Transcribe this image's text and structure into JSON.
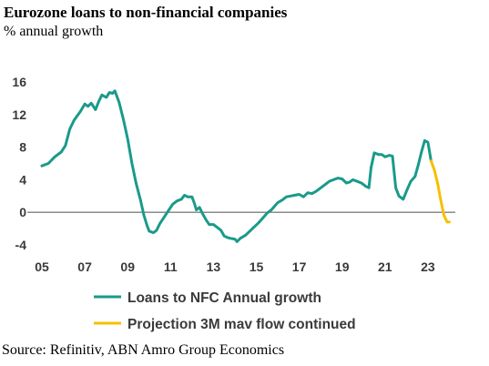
{
  "header": {
    "title": "Eurozone loans to non-financial companies",
    "subtitle": "% annual growth"
  },
  "footer": {
    "source": "Source: Refinitiv, ABN Amro Group Economics"
  },
  "colors": {
    "actual": "#1a9a8a",
    "projection": "#f5c000",
    "axis": "#7f7f7f",
    "text": "#3a3a3a"
  },
  "chart_data": {
    "type": "line",
    "title": "Eurozone loans to non-financial companies",
    "subtitle": "% annual growth",
    "xlabel": "",
    "ylabel": "",
    "xlim": [
      2005,
      2024
    ],
    "ylim": [
      -4,
      16
    ],
    "x_ticks": [
      {
        "value": 2005,
        "label": "05"
      },
      {
        "value": 2007,
        "label": "07"
      },
      {
        "value": 2009,
        "label": "09"
      },
      {
        "value": 2011,
        "label": "11"
      },
      {
        "value": 2013,
        "label": "13"
      },
      {
        "value": 2015,
        "label": "15"
      },
      {
        "value": 2017,
        "label": "17"
      },
      {
        "value": 2019,
        "label": "19"
      },
      {
        "value": 2021,
        "label": "21"
      },
      {
        "value": 2023,
        "label": "23"
      }
    ],
    "y_ticks": [
      {
        "value": 16,
        "label": "16"
      },
      {
        "value": 12,
        "label": "12"
      },
      {
        "value": 8,
        "label": "8"
      },
      {
        "value": 4,
        "label": "4"
      },
      {
        "value": 0,
        "label": "0"
      },
      {
        "value": -4,
        "label": "-4"
      }
    ],
    "grid": false,
    "legend_position": "bottom",
    "series": [
      {
        "name": "Loans to NFC Annual growth",
        "color": "#1a9a8a",
        "points": [
          [
            2005.0,
            5.7
          ],
          [
            2005.3,
            6.0
          ],
          [
            2005.6,
            6.8
          ],
          [
            2005.9,
            7.4
          ],
          [
            2006.1,
            8.2
          ],
          [
            2006.3,
            10.2
          ],
          [
            2006.5,
            11.3
          ],
          [
            2006.8,
            12.4
          ],
          [
            2007.0,
            13.3
          ],
          [
            2007.15,
            13.0
          ],
          [
            2007.3,
            13.4
          ],
          [
            2007.5,
            12.6
          ],
          [
            2007.65,
            13.6
          ],
          [
            2007.8,
            14.4
          ],
          [
            2008.0,
            14.1
          ],
          [
            2008.15,
            14.7
          ],
          [
            2008.3,
            14.6
          ],
          [
            2008.4,
            14.9
          ],
          [
            2008.6,
            13.5
          ],
          [
            2008.8,
            11.4
          ],
          [
            2009.0,
            9.0
          ],
          [
            2009.2,
            6.0
          ],
          [
            2009.4,
            3.5
          ],
          [
            2009.6,
            1.5
          ],
          [
            2009.75,
            -0.3
          ],
          [
            2009.9,
            -1.6
          ],
          [
            2010.0,
            -2.3
          ],
          [
            2010.2,
            -2.5
          ],
          [
            2010.35,
            -2.2
          ],
          [
            2010.5,
            -1.4
          ],
          [
            2010.7,
            -0.6
          ],
          [
            2010.9,
            0.2
          ],
          [
            2011.1,
            1.0
          ],
          [
            2011.3,
            1.4
          ],
          [
            2011.5,
            1.6
          ],
          [
            2011.65,
            2.1
          ],
          [
            2011.8,
            1.9
          ],
          [
            2012.0,
            1.9
          ],
          [
            2012.1,
            1.2
          ],
          [
            2012.2,
            0.3
          ],
          [
            2012.35,
            0.6
          ],
          [
            2012.5,
            -0.2
          ],
          [
            2012.65,
            -0.9
          ],
          [
            2012.8,
            -1.5
          ],
          [
            2013.0,
            -1.5
          ],
          [
            2013.2,
            -1.9
          ],
          [
            2013.35,
            -2.2
          ],
          [
            2013.5,
            -2.9
          ],
          [
            2013.65,
            -3.1
          ],
          [
            2013.8,
            -3.2
          ],
          [
            2014.0,
            -3.3
          ],
          [
            2014.1,
            -3.6
          ],
          [
            2014.25,
            -3.2
          ],
          [
            2014.5,
            -2.8
          ],
          [
            2014.7,
            -2.3
          ],
          [
            2014.9,
            -1.8
          ],
          [
            2015.1,
            -1.3
          ],
          [
            2015.3,
            -0.7
          ],
          [
            2015.5,
            -0.1
          ],
          [
            2015.7,
            0.3
          ],
          [
            2015.9,
            0.9
          ],
          [
            2016.0,
            1.2
          ],
          [
            2016.2,
            1.5
          ],
          [
            2016.4,
            1.9
          ],
          [
            2016.6,
            2.0
          ],
          [
            2016.8,
            2.1
          ],
          [
            2017.0,
            2.2
          ],
          [
            2017.2,
            1.9
          ],
          [
            2017.4,
            2.4
          ],
          [
            2017.6,
            2.3
          ],
          [
            2017.8,
            2.6
          ],
          [
            2018.0,
            3.0
          ],
          [
            2018.2,
            3.4
          ],
          [
            2018.4,
            3.8
          ],
          [
            2018.6,
            4.0
          ],
          [
            2018.8,
            4.2
          ],
          [
            2019.0,
            4.1
          ],
          [
            2019.2,
            3.6
          ],
          [
            2019.35,
            3.7
          ],
          [
            2019.5,
            4.0
          ],
          [
            2019.7,
            3.8
          ],
          [
            2019.9,
            3.6
          ],
          [
            2020.1,
            3.2
          ],
          [
            2020.25,
            3.0
          ],
          [
            2020.35,
            5.5
          ],
          [
            2020.5,
            7.3
          ],
          [
            2020.7,
            7.1
          ],
          [
            2020.85,
            7.1
          ],
          [
            2021.0,
            6.8
          ],
          [
            2021.2,
            7.0
          ],
          [
            2021.35,
            6.9
          ],
          [
            2021.5,
            3.0
          ],
          [
            2021.65,
            2.0
          ],
          [
            2021.85,
            1.6
          ],
          [
            2022.0,
            2.6
          ],
          [
            2022.2,
            3.8
          ],
          [
            2022.4,
            4.4
          ],
          [
            2022.55,
            5.8
          ],
          [
            2022.7,
            7.4
          ],
          [
            2022.85,
            8.8
          ],
          [
            2023.0,
            8.6
          ],
          [
            2023.15,
            6.3
          ]
        ]
      },
      {
        "name": "Projection 3M mav flow continued",
        "color": "#f5c000",
        "points": [
          [
            2023.15,
            6.3
          ],
          [
            2023.3,
            5.2
          ],
          [
            2023.45,
            3.6
          ],
          [
            2023.6,
            1.5
          ],
          [
            2023.75,
            -0.4
          ],
          [
            2023.9,
            -1.2
          ],
          [
            2024.0,
            -1.2
          ]
        ]
      }
    ]
  }
}
